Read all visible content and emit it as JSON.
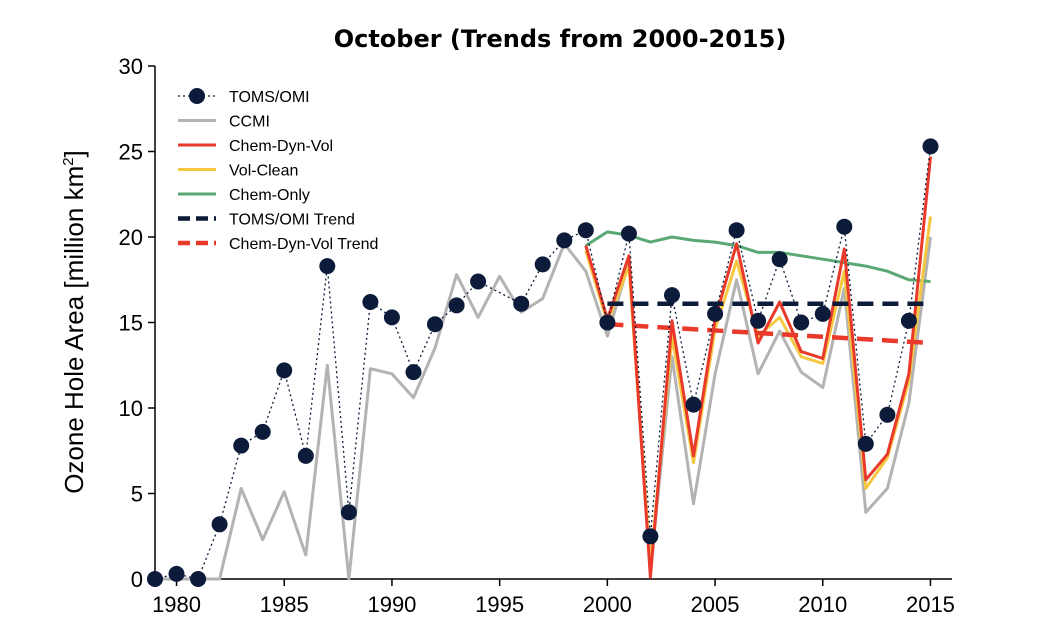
{
  "chart_data": {
    "type": "line",
    "title": "October (Trends from 2000-2015)",
    "ylabel": "Ozone Hole Area [million km",
    "ylabel_sup": "2",
    "ylabel_close": "]",
    "xlabel": "",
    "xlim": [
      1979,
      2016
    ],
    "ylim": [
      0,
      30
    ],
    "x_ticks": [
      1980,
      1985,
      1990,
      1995,
      2000,
      2005,
      2010,
      2015
    ],
    "y_ticks": [
      0,
      5,
      10,
      15,
      20,
      25,
      30
    ],
    "grid": false,
    "legend_position": "top-left",
    "colors": {
      "toms": "#0d1b3a",
      "ccmi": "#b3b3b3",
      "chem_dyn_vol": "#e8392a",
      "vol_clean": "#f5c842",
      "chem_only": "#5aa874",
      "toms_trend": "#0d1b3a",
      "cdv_trend": "#e8392a"
    },
    "series": [
      {
        "name": "TOMS/OMI",
        "key": "toms",
        "style": "dotted-markers",
        "x": [
          1979,
          1980,
          1981,
          1982,
          1983,
          1984,
          1985,
          1986,
          1987,
          1988,
          1989,
          1990,
          1991,
          1992,
          1993,
          1994,
          1996,
          1997,
          1998,
          1999,
          2000,
          2001,
          2002,
          2003,
          2004,
          2005,
          2006,
          2007,
          2008,
          2009,
          2010,
          2011,
          2012,
          2013,
          2014,
          2015
        ],
        "values": [
          0.0,
          0.3,
          0.0,
          3.2,
          7.8,
          8.6,
          12.2,
          7.2,
          18.3,
          3.9,
          16.2,
          15.3,
          12.1,
          14.9,
          16.0,
          17.4,
          16.1,
          18.4,
          19.8,
          20.4,
          15.0,
          20.2,
          2.5,
          16.6,
          10.2,
          15.5,
          20.4,
          15.1,
          18.7,
          15.0,
          15.5,
          20.6,
          7.9,
          9.6,
          15.1,
          25.3
        ]
      },
      {
        "name": "CCMI",
        "key": "ccmi",
        "style": "solid",
        "x": [
          1979,
          1980,
          1981,
          1982,
          1983,
          1984,
          1985,
          1986,
          1987,
          1988,
          1989,
          1990,
          1991,
          1992,
          1993,
          1994,
          1995,
          1996,
          1997,
          1998,
          1999,
          2000,
          2001,
          2002,
          2003,
          2004,
          2005,
          2006,
          2007,
          2008,
          2009,
          2010,
          2011,
          2012,
          2013,
          2014,
          2015
        ],
        "values": [
          0.0,
          0.0,
          0.0,
          0.0,
          5.3,
          2.3,
          5.1,
          1.4,
          12.5,
          0.0,
          12.3,
          12.0,
          10.6,
          13.5,
          17.8,
          15.3,
          17.7,
          15.6,
          16.4,
          19.6,
          18.0,
          14.2,
          18.5,
          0.5,
          13.0,
          4.4,
          12.0,
          17.5,
          12.0,
          14.5,
          12.1,
          11.2,
          17.0,
          3.9,
          5.3,
          10.3,
          20.0
        ]
      },
      {
        "name": "Chem-Dyn-Vol",
        "key": "chem_dyn_vol",
        "style": "solid",
        "x": [
          1999,
          2000,
          2001,
          2002,
          2003,
          2004,
          2005,
          2006,
          2007,
          2008,
          2009,
          2010,
          2011,
          2012,
          2013,
          2014,
          2015
        ],
        "values": [
          19.5,
          15.2,
          18.9,
          0.1,
          15.1,
          7.2,
          15.2,
          19.6,
          13.8,
          16.2,
          13.3,
          12.9,
          19.3,
          5.8,
          7.3,
          12.0,
          24.7
        ]
      },
      {
        "name": "Vol-Clean",
        "key": "vol_clean",
        "style": "solid",
        "x": [
          1999,
          2000,
          2001,
          2002,
          2003,
          2004,
          2005,
          2006,
          2007,
          2008,
          2009,
          2010,
          2011,
          2012,
          2013,
          2014,
          2015
        ],
        "values": [
          19.2,
          15.0,
          18.3,
          0.8,
          14.2,
          6.8,
          14.6,
          18.6,
          14.2,
          15.3,
          13.0,
          12.6,
          18.0,
          5.3,
          7.1,
          11.6,
          21.2
        ]
      },
      {
        "name": "Chem-Only",
        "key": "chem_only",
        "style": "solid",
        "x": [
          1999,
          2000,
          2001,
          2002,
          2003,
          2004,
          2005,
          2006,
          2007,
          2008,
          2009,
          2010,
          2011,
          2012,
          2013,
          2014,
          2015
        ],
        "values": [
          19.5,
          20.3,
          20.1,
          19.7,
          20.0,
          19.8,
          19.7,
          19.5,
          19.1,
          19.1,
          18.9,
          18.7,
          18.5,
          18.3,
          18.0,
          17.5,
          17.4
        ]
      },
      {
        "name": "TOMS/OMI Trend",
        "key": "toms_trend",
        "style": "dashed",
        "x": [
          2000,
          2015
        ],
        "values": [
          16.1,
          16.1
        ]
      },
      {
        "name": "Chem-Dyn-Vol Trend",
        "key": "cdv_trend",
        "style": "dashed",
        "x": [
          2000,
          2015
        ],
        "values": [
          14.9,
          13.8
        ]
      }
    ]
  }
}
